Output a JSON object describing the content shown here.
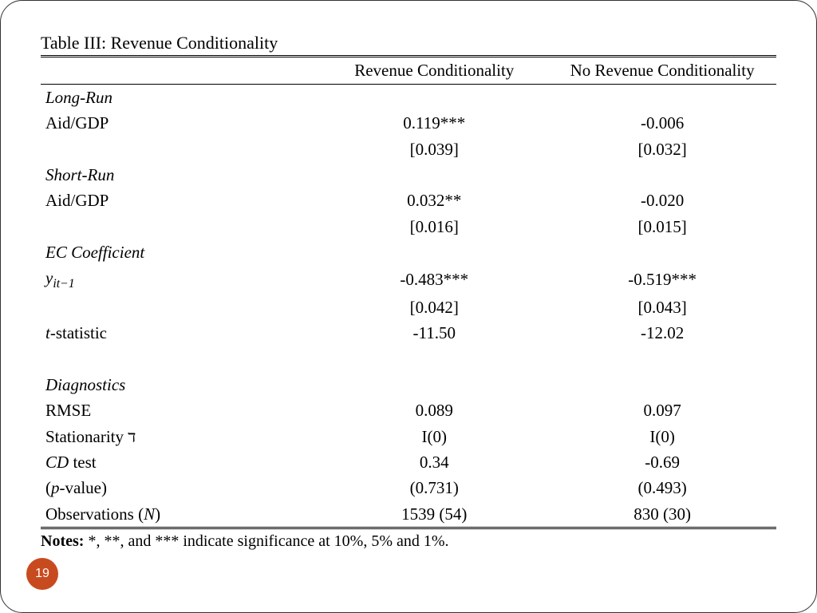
{
  "table": {
    "title": "Table III: Revenue Conditionality",
    "columns": {
      "col1": "Revenue Conditionality",
      "col2": "No Revenue Conditionality"
    },
    "sections": {
      "long_run": {
        "label": "Long-Run",
        "aid_gdp": {
          "label": "Aid/GDP",
          "col1": "0.119***",
          "col1_se": "[0.039]",
          "col2": "-0.006",
          "col2_se": "[0.032]"
        }
      },
      "short_run": {
        "label": "Short-Run",
        "aid_gdp": {
          "label": "Aid/GDP",
          "col1": "0.032**",
          "col1_se": "[0.016]",
          "col2": "-0.020",
          "col2_se": "[0.015]"
        }
      },
      "ec": {
        "label": "EC Coefficient",
        "yit": {
          "label_var": "y",
          "label_sub": "it−1",
          "col1": "-0.483***",
          "col1_se": "[0.042]",
          "col2": "-0.519***",
          "col2_se": "[0.043]"
        },
        "tstat": {
          "label_var": "t",
          "label_rest": "-statistic",
          "col1": "-11.50",
          "col2": "-12.02"
        }
      },
      "diag": {
        "label": "Diagnostics",
        "rmse": {
          "label": "RMSE",
          "col1": "0.089",
          "col2": "0.097"
        },
        "stat": {
          "label_pre": "Stationarity ",
          "label_sym": "ד",
          "col1": "I(0)",
          "col2": "I(0)"
        },
        "cd": {
          "label_var": "CD",
          "label_rest": " test",
          "col1": "0.34",
          "col2": "-0.69"
        },
        "pval": {
          "label_pre": "(",
          "label_var": "p",
          "label_rest": "-value)",
          "col1": "(0.731)",
          "col2": "(0.493)"
        },
        "obs": {
          "label_pre": "Observations (",
          "label_var": "N",
          "label_rest": ")",
          "col1": "1539 (54)",
          "col2": "830 (30)"
        }
      }
    },
    "notes_bold": "Notes:",
    "notes_text": " *, **, and *** indicate significance at 10%, 5% and 1%."
  },
  "page_number": "19",
  "style": {
    "badge_color": "#c84b1f",
    "font": "Times New Roman",
    "font_size_body": 21,
    "border_radius": 28
  }
}
